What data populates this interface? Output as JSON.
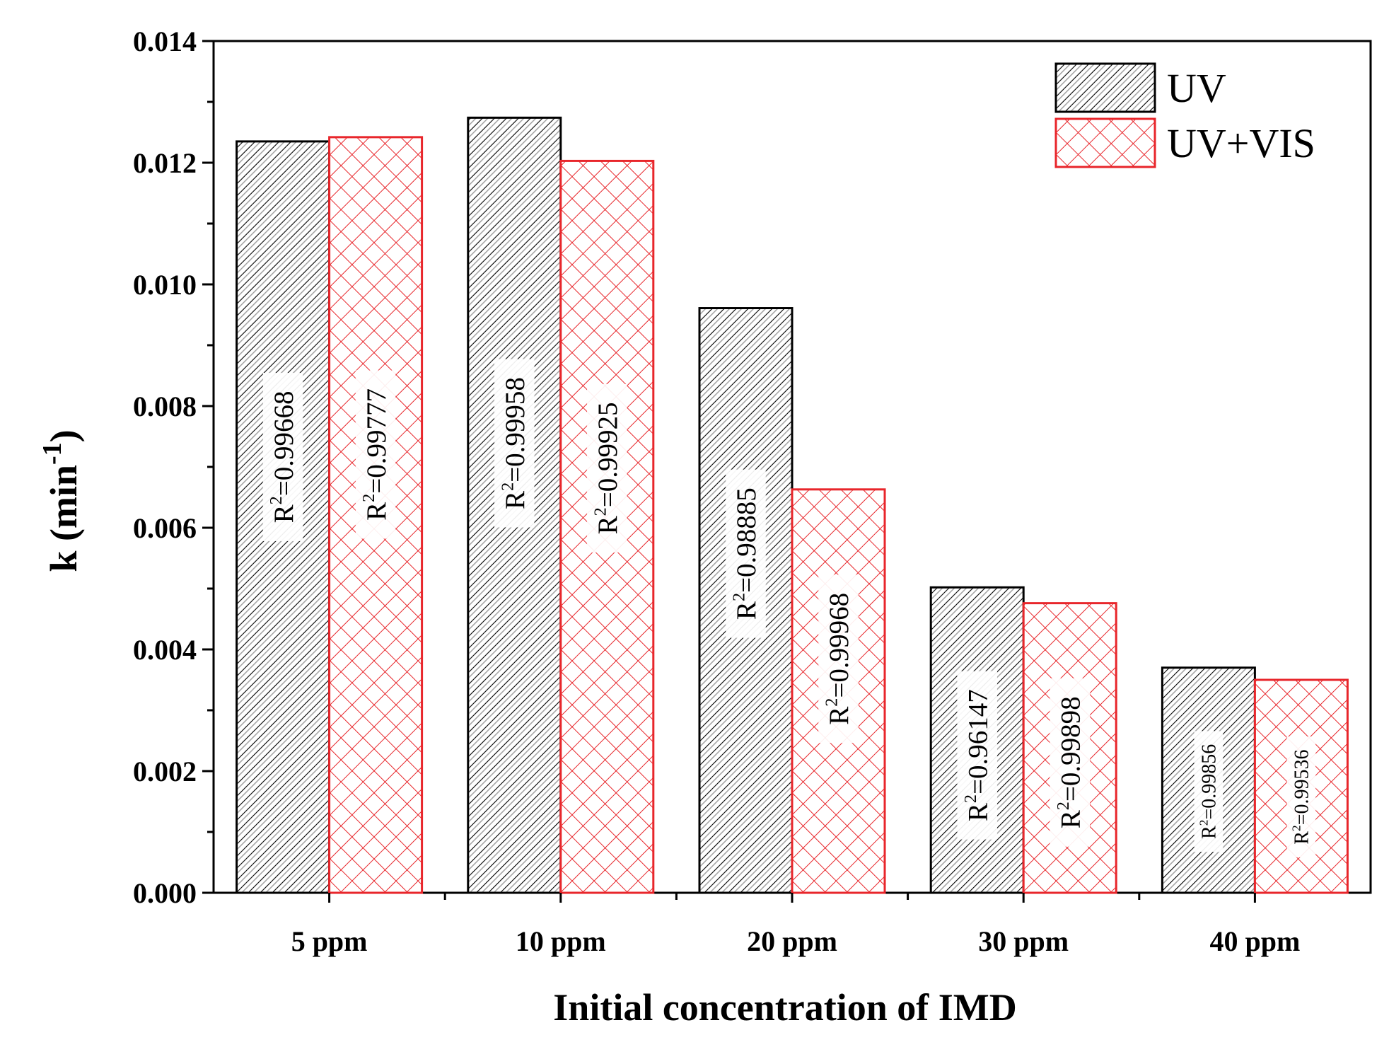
{
  "chart_data": {
    "type": "bar",
    "title": "",
    "xlabel": "Initial concentration of IMD",
    "ylabel_main": "k (min",
    "ylabel_sup": "-1",
    "ylabel_close": ")",
    "ylim": [
      0,
      0.014
    ],
    "yticks": [
      "0.000",
      "0.002",
      "0.004",
      "0.006",
      "0.008",
      "0.010",
      "0.012",
      "0.014"
    ],
    "categories": [
      "5 ppm",
      "10 ppm",
      "20 ppm",
      "30 ppm",
      "40 ppm"
    ],
    "legend_position": "top-right",
    "series": [
      {
        "name": "UV",
        "color": "#000000",
        "pattern": "diagonal-hatch",
        "values": [
          0.01235,
          0.01274,
          0.00961,
          0.00502,
          0.0037
        ],
        "r2_prefix": "R",
        "r2_sup": "2",
        "r2": [
          "=0.99668",
          "=0.99958",
          "=0.98885",
          "=0.96147",
          "=0.99856"
        ]
      },
      {
        "name": "UV+VIS",
        "color": "#e8262b",
        "pattern": "cross-hatch",
        "values": [
          0.01242,
          0.01203,
          0.00663,
          0.00476,
          0.0035
        ],
        "r2_prefix": "R",
        "r2_sup": "2",
        "r2": [
          "=0.99777",
          "=0.99925",
          "=0.99968",
          "=0.99898",
          "=0.99536"
        ]
      }
    ]
  }
}
